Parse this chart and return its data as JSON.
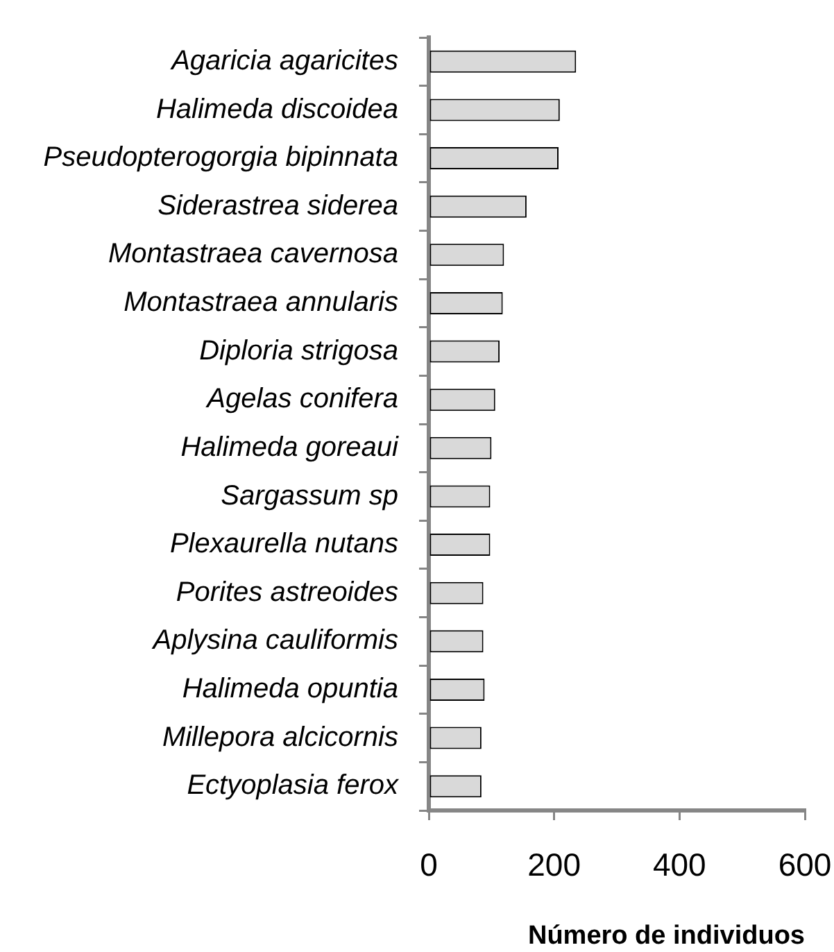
{
  "chart_data": {
    "type": "bar",
    "orientation": "horizontal",
    "categories": [
      "Agaricia agaricites",
      "Halimeda discoidea",
      "Pseudopterogorgia bipinnata",
      "Siderastrea siderea",
      "Montastraea cavernosa",
      "Montastraea annularis",
      "Diploria strigosa",
      "Agelas conifera",
      "Halimeda goreaui",
      "Sargassum sp",
      "Plexaurella nutans",
      "Porites astreoides",
      "Aplysina cauliformis",
      "Halimeda opuntia",
      "Millepora alcicornis",
      "Ectyoplasia ferox"
    ],
    "values": [
      235,
      209,
      207,
      156,
      120,
      118,
      113,
      106,
      100,
      98,
      98,
      87,
      87,
      89,
      84,
      84
    ],
    "color": "#d9d9d9",
    "xlabel": "Número de individuos",
    "xlim": [
      0,
      600
    ],
    "xticks": [
      0,
      200,
      400,
      600
    ],
    "grid": false,
    "legend": false
  }
}
